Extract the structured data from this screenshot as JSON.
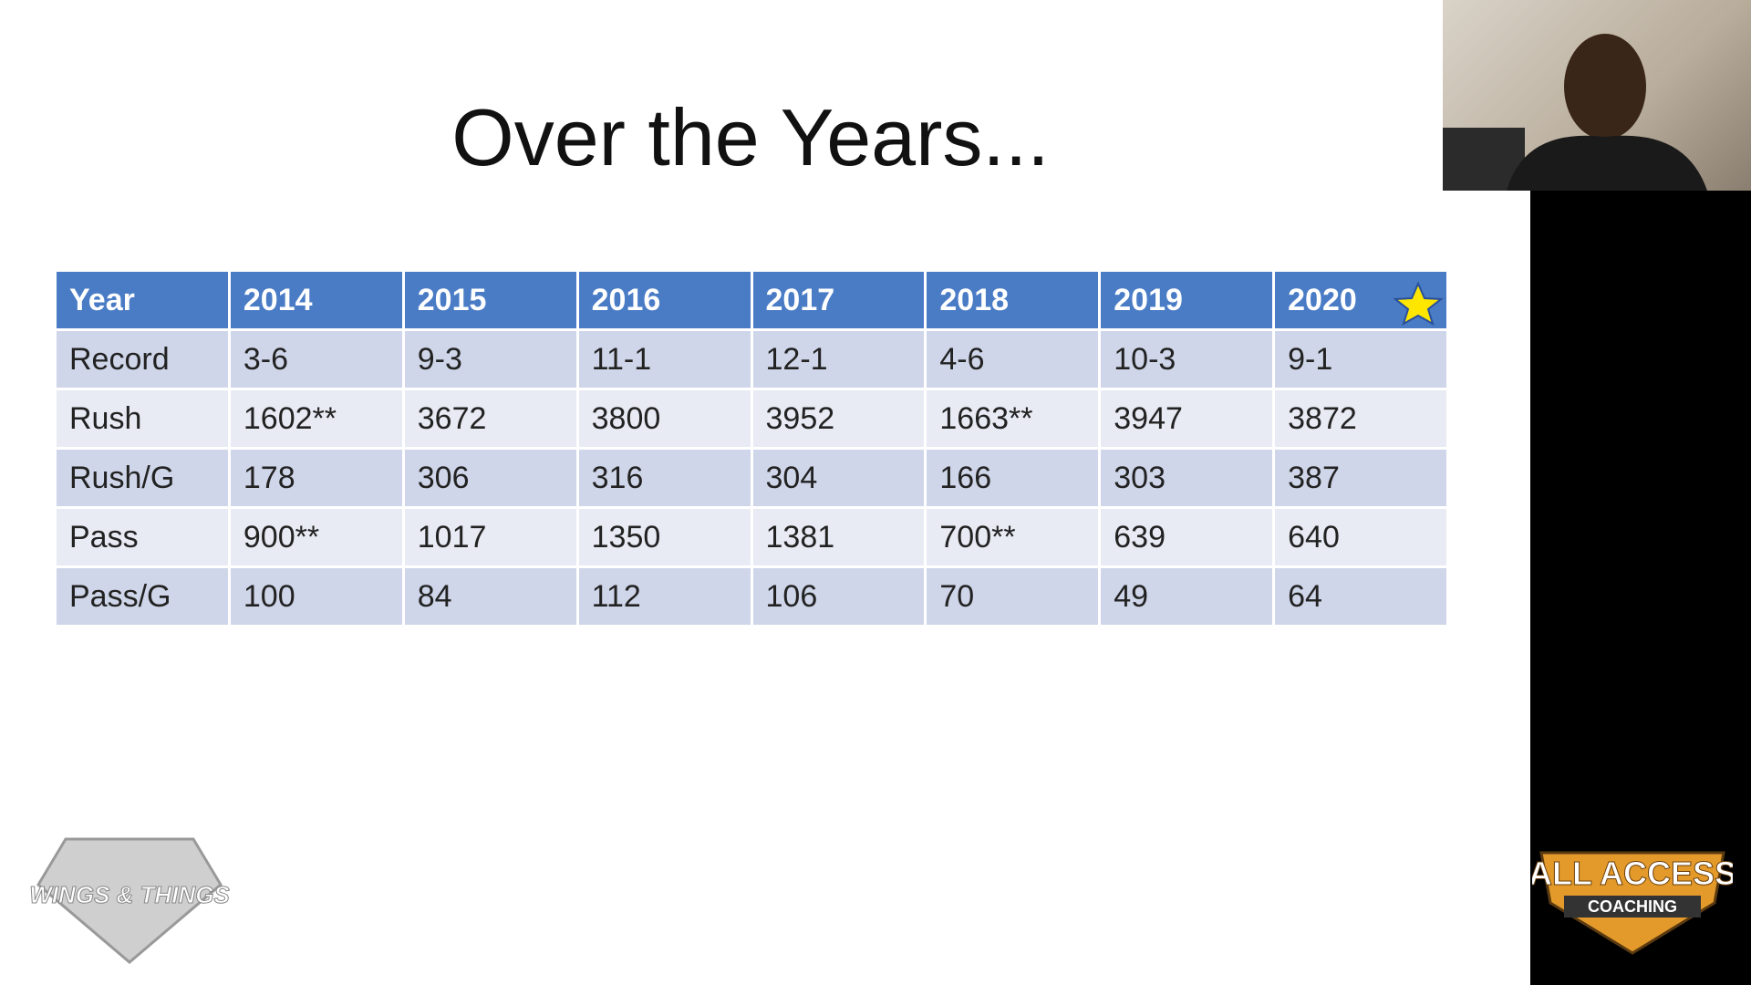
{
  "slide": {
    "title": "Over the Years..."
  },
  "table": {
    "header": [
      "Year",
      "2014",
      "2015",
      "2016",
      "2017",
      "2018",
      "2019",
      "2020"
    ],
    "rows": [
      [
        "Record",
        "3-6",
        "9-3",
        "11-1",
        "12-1",
        "4-6",
        "10-3",
        "9-1"
      ],
      [
        "Rush",
        "1602**",
        "3672",
        "3800",
        "3952",
        "1663**",
        "3947",
        "3872"
      ],
      [
        "Rush/G",
        "178",
        "306",
        "316",
        "304",
        "166",
        "303",
        "387"
      ],
      [
        "Pass",
        "900**",
        "1017",
        "1350",
        "1381",
        "700**",
        "639",
        "640"
      ],
      [
        "Pass/G",
        "100",
        "84",
        "112",
        "106",
        "70",
        "49",
        "64"
      ]
    ]
  },
  "logos": {
    "left": "WINGS & THINGS",
    "right_top": "ALL ACCESS",
    "right_bottom": "COACHING"
  }
}
